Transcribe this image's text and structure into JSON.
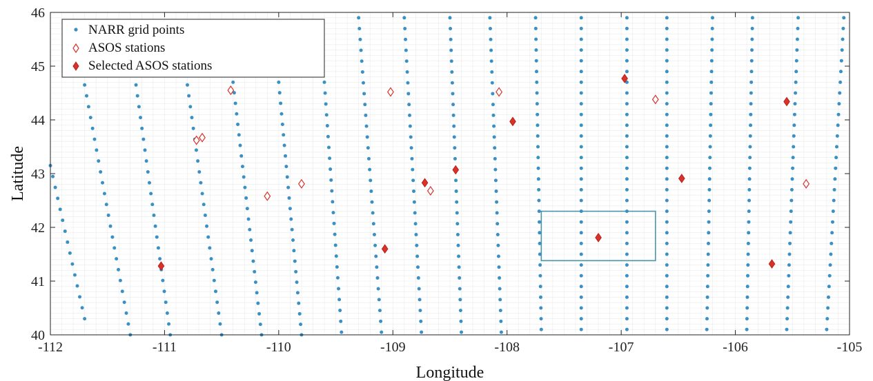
{
  "chart_data": {
    "type": "scatter",
    "xlabel": "Longitude",
    "ylabel": "Latitude",
    "xlim": [
      -112,
      -105
    ],
    "ylim": [
      40,
      46
    ],
    "xticks": [
      -112,
      -111,
      -110,
      -109,
      -108,
      -107,
      -106,
      -105
    ],
    "yticks": [
      40,
      41,
      42,
      43,
      44,
      45,
      46
    ],
    "grid": "fine minor grid on",
    "legend": "top-left",
    "colors": {
      "grid_points": "#3a8fc4",
      "asos": "#d9322b",
      "box": "#4a94a8"
    },
    "series": [
      {
        "name": "NARR grid points",
        "marker": "dot",
        "note": "dense grid of points along slightly tilted meridional columns",
        "columns": [
          {
            "top": [
              -112.0,
              43.15
            ],
            "bottom": [
              -111.7,
              40.3
            ]
          },
          {
            "top": [
              -111.7,
              44.65
            ],
            "bottom": [
              -111.3,
              40.0
            ]
          },
          {
            "top": [
              -111.25,
              44.65
            ],
            "bottom": [
              -110.95,
              40.0
            ]
          },
          {
            "top": [
              -110.8,
              44.65
            ],
            "bottom": [
              -110.5,
              40.0
            ]
          },
          {
            "top": [
              -110.4,
              44.7
            ],
            "bottom": [
              -110.15,
              40.0
            ]
          },
          {
            "top": [
              -110.0,
              44.7
            ],
            "bottom": [
              -109.8,
              40.0
            ]
          },
          {
            "top": [
              -109.6,
              44.7
            ],
            "bottom": [
              -109.45,
              40.05
            ]
          },
          {
            "top": [
              -109.3,
              45.9
            ],
            "bottom": [
              -109.1,
              40.05
            ]
          },
          {
            "top": [
              -108.9,
              45.9
            ],
            "bottom": [
              -108.75,
              40.05
            ]
          },
          {
            "top": [
              -108.5,
              45.9
            ],
            "bottom": [
              -108.4,
              40.05
            ]
          },
          {
            "top": [
              -108.15,
              45.9
            ],
            "bottom": [
              -108.05,
              40.05
            ]
          },
          {
            "top": [
              -107.75,
              45.9
            ],
            "bottom": [
              -107.7,
              40.1
            ]
          },
          {
            "top": [
              -107.35,
              45.9
            ],
            "bottom": [
              -107.35,
              40.1
            ]
          },
          {
            "top": [
              -106.95,
              45.9
            ],
            "bottom": [
              -106.95,
              40.1
            ]
          },
          {
            "top": [
              -106.6,
              45.9
            ],
            "bottom": [
              -106.6,
              40.1
            ]
          },
          {
            "top": [
              -106.2,
              45.9
            ],
            "bottom": [
              -106.25,
              40.1
            ]
          },
          {
            "top": [
              -105.85,
              45.9
            ],
            "bottom": [
              -105.9,
              40.1
            ]
          },
          {
            "top": [
              -105.45,
              45.9
            ],
            "bottom": [
              -105.55,
              40.1
            ]
          },
          {
            "top": [
              -105.05,
              45.9
            ],
            "bottom": [
              -105.2,
              40.1
            ]
          }
        ]
      },
      {
        "name": "ASOS stations",
        "marker": "open-diamond",
        "points": [
          [
            -110.72,
            43.62
          ],
          [
            -110.67,
            43.67
          ],
          [
            -110.42,
            44.55
          ],
          [
            -110.1,
            42.58
          ],
          [
            -109.8,
            42.81
          ],
          [
            -109.02,
            44.52
          ],
          [
            -108.67,
            42.68
          ],
          [
            -108.07,
            44.52
          ],
          [
            -106.7,
            44.38
          ],
          [
            -105.38,
            42.81
          ]
        ]
      },
      {
        "name": "Selected ASOS stations",
        "marker": "filled-diamond",
        "points": [
          [
            -111.03,
            41.28
          ],
          [
            -109.07,
            41.6
          ],
          [
            -108.72,
            42.83
          ],
          [
            -108.45,
            43.07
          ],
          [
            -107.95,
            43.97
          ],
          [
            -107.2,
            41.81
          ],
          [
            -106.97,
            44.77
          ],
          [
            -106.47,
            42.91
          ],
          [
            -105.68,
            41.32
          ],
          [
            -105.55,
            44.34
          ]
        ]
      }
    ],
    "annotations": [
      {
        "type": "rectangle",
        "x0": -107.7,
        "x1": -106.7,
        "y0": 41.38,
        "y1": 42.3
      }
    ]
  }
}
